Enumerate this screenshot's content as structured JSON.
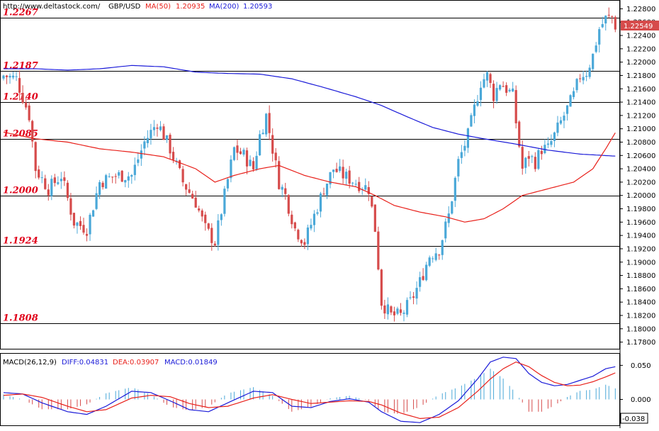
{
  "header": {
    "url": "http://www.deltastock.com/",
    "symbol": "GBP/USD",
    "ma50_label": "MA(50)",
    "ma50_value": "1.20935",
    "ma200_label": "MA(200)",
    "ma200_value": "1.20593"
  },
  "macd_header": {
    "label": "MACD(26,12,9)",
    "diff": "DIFF:0.04831",
    "dea": "DEA:0.03907",
    "macd": "MACD:0.01849"
  },
  "colors": {
    "bull": "#4aa8d8",
    "bear": "#d64b4b",
    "ma50": "#e8201a",
    "ma200": "#1a1ad8",
    "level_text": "#e0001a",
    "price_tag": "#d64b4b"
  },
  "chart_data": [
    {
      "type": "candlestick",
      "title": "GBP/USD",
      "ylim": [
        1.177,
        1.229
      ],
      "y_ticks": [
        "1.22800",
        "1.22600",
        "1.22400",
        "1.22200",
        "1.22000",
        "1.21800",
        "1.21600",
        "1.21400",
        "1.21200",
        "1.21000",
        "1.20800",
        "1.20600",
        "1.20400",
        "1.20200",
        "1.20000",
        "1.19800",
        "1.19600",
        "1.19400",
        "1.19200",
        "1.19000",
        "1.18800",
        "1.18600",
        "1.18400",
        "1.18200",
        "1.18000",
        "1.17800"
      ],
      "current_price": "1.22549",
      "levels": [
        {
          "label": "1.2267",
          "value": 1.2267
        },
        {
          "label": "1.2187",
          "value": 1.2187
        },
        {
          "label": "1.2140",
          "value": 1.214
        },
        {
          "label": "1.2085",
          "value": 1.2085
        },
        {
          "label": "1.2000",
          "value": 1.2
        },
        {
          "label": "1.1924",
          "value": 1.1924
        },
        {
          "label": "1.1808",
          "value": 1.1808
        }
      ],
      "anchors_close": [
        [
          0,
          1.218
        ],
        [
          4,
          1.2175
        ],
        [
          8,
          1.212
        ],
        [
          10,
          1.204
        ],
        [
          14,
          1.201
        ],
        [
          18,
          1.203
        ],
        [
          22,
          1.196
        ],
        [
          26,
          1.195
        ],
        [
          30,
          1.202
        ],
        [
          35,
          1.203
        ],
        [
          40,
          1.203
        ],
        [
          44,
          1.208
        ],
        [
          48,
          1.211
        ],
        [
          52,
          1.207
        ],
        [
          56,
          1.202
        ],
        [
          60,
          1.199
        ],
        [
          63,
          1.195
        ],
        [
          66,
          1.193
        ],
        [
          69,
          1.2
        ],
        [
          72,
          1.207
        ],
        [
          75,
          1.206
        ],
        [
          78,
          1.204
        ],
        [
          80,
          1.209
        ],
        [
          82,
          1.212
        ],
        [
          84,
          1.207
        ],
        [
          86,
          1.202
        ],
        [
          88,
          1.2
        ],
        [
          91,
          1.195
        ],
        [
          94,
          1.193
        ],
        [
          97,
          1.197
        ],
        [
          100,
          1.201
        ],
        [
          103,
          1.204
        ],
        [
          106,
          1.203
        ],
        [
          110,
          1.202
        ],
        [
          114,
          1.201
        ],
        [
          116,
          1.195
        ],
        [
          118,
          1.184
        ],
        [
          121,
          1.182
        ],
        [
          124,
          1.182
        ],
        [
          127,
          1.184
        ],
        [
          130,
          1.187
        ],
        [
          133,
          1.191
        ],
        [
          136,
          1.192
        ],
        [
          139,
          1.197
        ],
        [
          142,
          1.205
        ],
        [
          145,
          1.209
        ],
        [
          147,
          1.213
        ],
        [
          149,
          1.217
        ],
        [
          151,
          1.218
        ],
        [
          153,
          1.215
        ],
        [
          155,
          1.217
        ],
        [
          157,
          1.216
        ],
        [
          159,
          1.215
        ],
        [
          160,
          1.211
        ],
        [
          162,
          1.204
        ],
        [
          164,
          1.206
        ],
        [
          166,
          1.205
        ],
        [
          168,
          1.207
        ],
        [
          170,
          1.207
        ],
        [
          172,
          1.209
        ],
        [
          174,
          1.211
        ],
        [
          176,
          1.213
        ],
        [
          178,
          1.215
        ],
        [
          180,
          1.218
        ],
        [
          182,
          1.2185
        ],
        [
          184,
          1.221
        ],
        [
          186,
          1.225
        ],
        [
          188,
          1.2265
        ],
        [
          190,
          1.2268
        ],
        [
          191,
          1.2255
        ]
      ],
      "ma50": [
        [
          0,
          1.2095
        ],
        [
          10,
          1.2085
        ],
        [
          20,
          1.208
        ],
        [
          30,
          1.207
        ],
        [
          40,
          1.2065
        ],
        [
          50,
          1.2058
        ],
        [
          60,
          1.204
        ],
        [
          66,
          1.202
        ],
        [
          72,
          1.203
        ],
        [
          80,
          1.204
        ],
        [
          86,
          1.2045
        ],
        [
          94,
          1.203
        ],
        [
          102,
          1.202
        ],
        [
          110,
          1.2013
        ],
        [
          116,
          1.2
        ],
        [
          122,
          1.1985
        ],
        [
          130,
          1.1975
        ],
        [
          138,
          1.1968
        ],
        [
          144,
          1.196
        ],
        [
          150,
          1.1965
        ],
        [
          156,
          1.198
        ],
        [
          162,
          1.2
        ],
        [
          170,
          1.201
        ],
        [
          178,
          1.202
        ],
        [
          184,
          1.204
        ],
        [
          188,
          1.207
        ],
        [
          191,
          1.2094
        ]
      ],
      "ma200": [
        [
          0,
          1.219
        ],
        [
          10,
          1.219
        ],
        [
          20,
          1.2188
        ],
        [
          30,
          1.219
        ],
        [
          40,
          1.2195
        ],
        [
          50,
          1.2193
        ],
        [
          60,
          1.2185
        ],
        [
          70,
          1.2183
        ],
        [
          80,
          1.2182
        ],
        [
          90,
          1.2175
        ],
        [
          100,
          1.2162
        ],
        [
          110,
          1.2148
        ],
        [
          118,
          1.2135
        ],
        [
          126,
          1.2118
        ],
        [
          134,
          1.2102
        ],
        [
          142,
          1.2092
        ],
        [
          150,
          1.2085
        ],
        [
          160,
          1.2077
        ],
        [
          170,
          1.2068
        ],
        [
          180,
          1.2062
        ],
        [
          191,
          1.2059
        ]
      ]
    },
    {
      "type": "macd",
      "title": "MACD(26,12,9)",
      "ylim": [
        -0.038,
        0.066
      ],
      "y_ticks": [
        "0.050",
        "0.000"
      ],
      "bottom_label": "-0.038",
      "diff": [
        [
          0,
          0.01
        ],
        [
          6,
          0.008
        ],
        [
          12,
          -0.005
        ],
        [
          20,
          -0.018
        ],
        [
          26,
          -0.022
        ],
        [
          32,
          -0.01
        ],
        [
          40,
          0.012
        ],
        [
          46,
          0.01
        ],
        [
          52,
          -0.002
        ],
        [
          58,
          -0.015
        ],
        [
          64,
          -0.018
        ],
        [
          70,
          -0.005
        ],
        [
          78,
          0.012
        ],
        [
          84,
          0.01
        ],
        [
          90,
          -0.01
        ],
        [
          96,
          -0.012
        ],
        [
          102,
          -0.003
        ],
        [
          108,
          0.001
        ],
        [
          114,
          -0.004
        ],
        [
          118,
          -0.018
        ],
        [
          124,
          -0.032
        ],
        [
          130,
          -0.034
        ],
        [
          136,
          -0.022
        ],
        [
          142,
          -0.002
        ],
        [
          148,
          0.03
        ],
        [
          152,
          0.055
        ],
        [
          156,
          0.062
        ],
        [
          160,
          0.06
        ],
        [
          164,
          0.038
        ],
        [
          168,
          0.025
        ],
        [
          172,
          0.02
        ],
        [
          176,
          0.022
        ],
        [
          180,
          0.028
        ],
        [
          184,
          0.034
        ],
        [
          188,
          0.045
        ],
        [
          191,
          0.048
        ]
      ],
      "dea": [
        [
          0,
          0.006
        ],
        [
          6,
          0.008
        ],
        [
          12,
          0.003
        ],
        [
          20,
          -0.01
        ],
        [
          26,
          -0.018
        ],
        [
          32,
          -0.015
        ],
        [
          40,
          0.002
        ],
        [
          46,
          0.006
        ],
        [
          52,
          0.004
        ],
        [
          58,
          -0.006
        ],
        [
          64,
          -0.012
        ],
        [
          70,
          -0.01
        ],
        [
          78,
          0.002
        ],
        [
          84,
          0.007
        ],
        [
          90,
          0.0
        ],
        [
          96,
          -0.006
        ],
        [
          102,
          -0.004
        ],
        [
          108,
          -0.002
        ],
        [
          114,
          -0.003
        ],
        [
          118,
          -0.008
        ],
        [
          124,
          -0.02
        ],
        [
          130,
          -0.028
        ],
        [
          136,
          -0.026
        ],
        [
          142,
          -0.012
        ],
        [
          148,
          0.012
        ],
        [
          152,
          0.03
        ],
        [
          156,
          0.045
        ],
        [
          160,
          0.055
        ],
        [
          164,
          0.048
        ],
        [
          168,
          0.035
        ],
        [
          172,
          0.025
        ],
        [
          176,
          0.02
        ],
        [
          180,
          0.021
        ],
        [
          184,
          0.026
        ],
        [
          188,
          0.033
        ],
        [
          191,
          0.039
        ]
      ]
    }
  ]
}
